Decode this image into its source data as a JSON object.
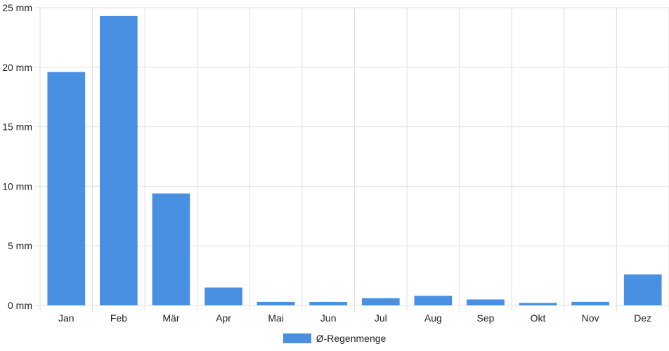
{
  "colors": {
    "bar": "#4a90e2",
    "grid": "#e0e0e0",
    "text": "#222222"
  },
  "legend": {
    "label": "Ø-Regenmenge",
    "position": "bottom-center"
  },
  "chart_data": {
    "type": "bar",
    "categories": [
      "Jan",
      "Feb",
      "Mär",
      "Apr",
      "Mai",
      "Jun",
      "Jul",
      "Aug",
      "Sep",
      "Okt",
      "Nov",
      "Dez"
    ],
    "series": [
      {
        "name": "Ø-Regenmenge",
        "values": [
          19.6,
          24.3,
          9.4,
          1.5,
          0.3,
          0.3,
          0.6,
          0.8,
          0.5,
          0.2,
          0.3,
          2.6
        ]
      }
    ],
    "y_ticks": [
      {
        "value": 0,
        "label": "0 mm"
      },
      {
        "value": 5,
        "label": "5 mm"
      },
      {
        "value": 10,
        "label": "10 mm"
      },
      {
        "value": 15,
        "label": "15 mm"
      },
      {
        "value": 20,
        "label": "20 mm"
      },
      {
        "value": 25,
        "label": "25 mm"
      }
    ],
    "ylim": [
      0,
      25
    ],
    "grid": true
  }
}
